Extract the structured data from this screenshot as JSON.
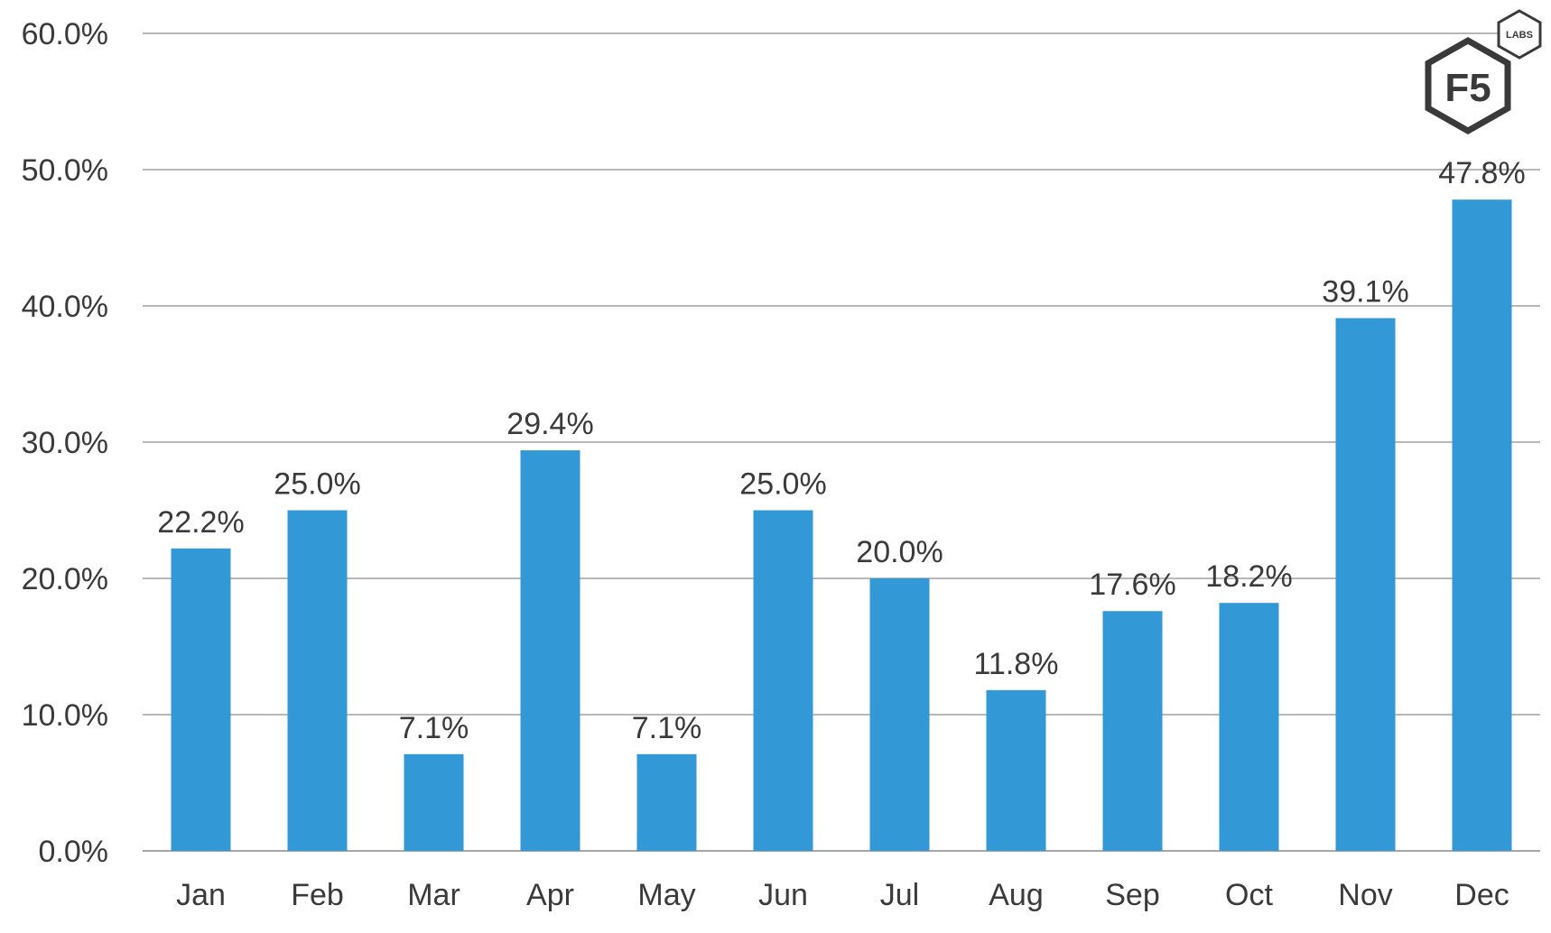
{
  "chart_data": {
    "type": "bar",
    "categories": [
      "Jan",
      "Feb",
      "Mar",
      "Apr",
      "May",
      "Jun",
      "Jul",
      "Aug",
      "Sep",
      "Oct",
      "Nov",
      "Dec"
    ],
    "values": [
      22.2,
      25.0,
      7.1,
      29.4,
      7.1,
      25.0,
      20.0,
      11.8,
      17.6,
      18.2,
      39.1,
      47.8
    ],
    "data_labels": [
      "22.2%",
      "25.0%",
      "7.1%",
      "29.4%",
      "7.1%",
      "25.0%",
      "20.0%",
      "11.8%",
      "17.6%",
      "18.2%",
      "39.1%",
      "47.8%"
    ],
    "yticks": [
      0,
      10,
      20,
      30,
      40,
      50,
      60
    ],
    "ytick_labels": [
      "0.0%",
      "10.0%",
      "20.0%",
      "30.0%",
      "40.0%",
      "50.0%",
      "60.0%"
    ],
    "ylim": [
      0,
      60
    ],
    "grid": true,
    "legend": "none",
    "bar_color": "#3399d6",
    "grid_color": "#b8b8b8",
    "text_color": "#3a3a3a"
  },
  "logo": {
    "mark": "F5",
    "sub": "LABS",
    "icon": "f5-labs-logo-icon",
    "color": "#3a3a3a"
  }
}
